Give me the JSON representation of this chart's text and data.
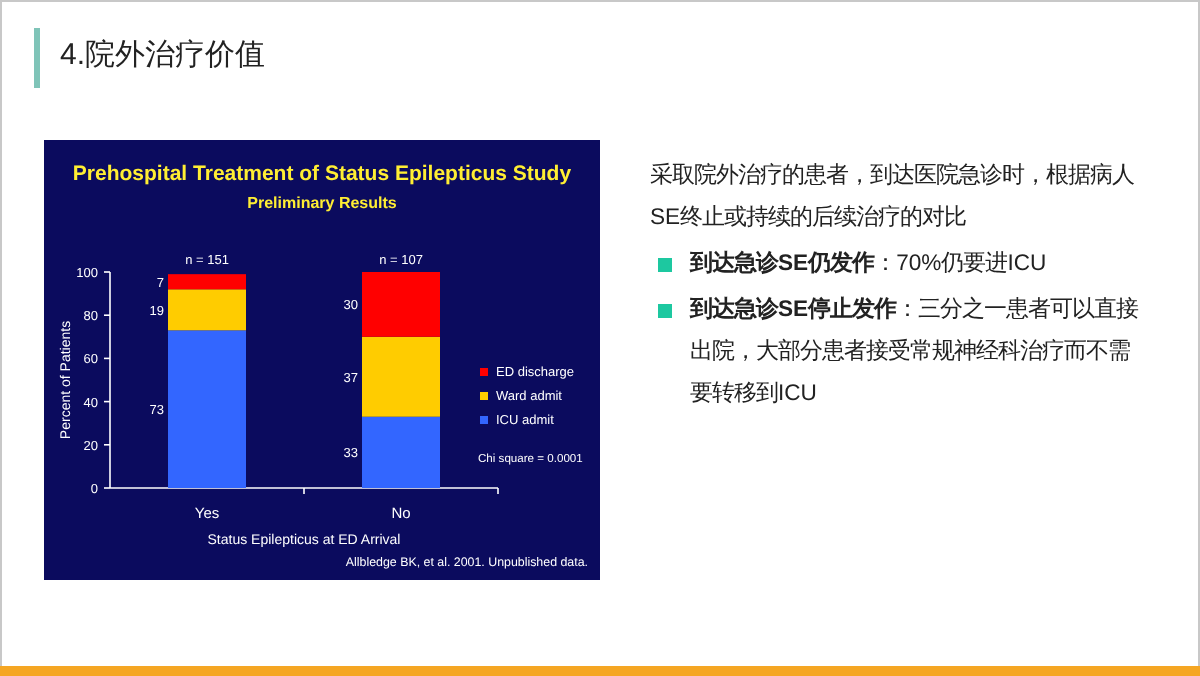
{
  "chart_data": [
    {
      "type": "bar",
      "title": "Prehospital Treatment of Status Epilepticus Study",
      "subtitle": "Preliminary Results",
      "xlabel": "Status Epilepticus at ED Arrival",
      "ylabel": "Percent of Patients",
      "categories": [
        "Yes",
        "No"
      ],
      "stacked": true,
      "data_labels": true,
      "legend": "right",
      "grid": false,
      "ylim": [
        0,
        100
      ],
      "yticks": [
        0,
        20,
        40,
        60,
        80,
        100
      ],
      "series": [
        {
          "name": "ICU admit",
          "color": "#3366ff",
          "values": [
            73,
            33
          ]
        },
        {
          "name": "Ward admit",
          "color": "#ffcc00",
          "values": [
            19,
            37
          ]
        },
        {
          "name": "ED discharge",
          "color": "#ff0000",
          "values": [
            7,
            30
          ]
        }
      ],
      "annotations": [
        {
          "text": "n = 151",
          "x": "Yes",
          "y": 100
        },
        {
          "text": "n = 107",
          "x": "No",
          "y": 100
        },
        "Chi square = 0.0001",
        "Allbledge BK, et al. 2001. Unpublished data."
      ]
    },
    {
      "type": "other",
      "title": "4.院外治疗价值",
      "annotations": [
        "采取院外治疗的患者，到达医院急诊时，根据病人SE终止或持续的后续治疗的对比",
        "到达急诊SE仍发作",
        "：70%仍要进ICU",
        "到达急诊SE停止发作",
        "：三分之一患者可以直接出院，大部分患者接受常规神经科治疗而不需要转移到ICU"
      ]
    }
  ]
}
